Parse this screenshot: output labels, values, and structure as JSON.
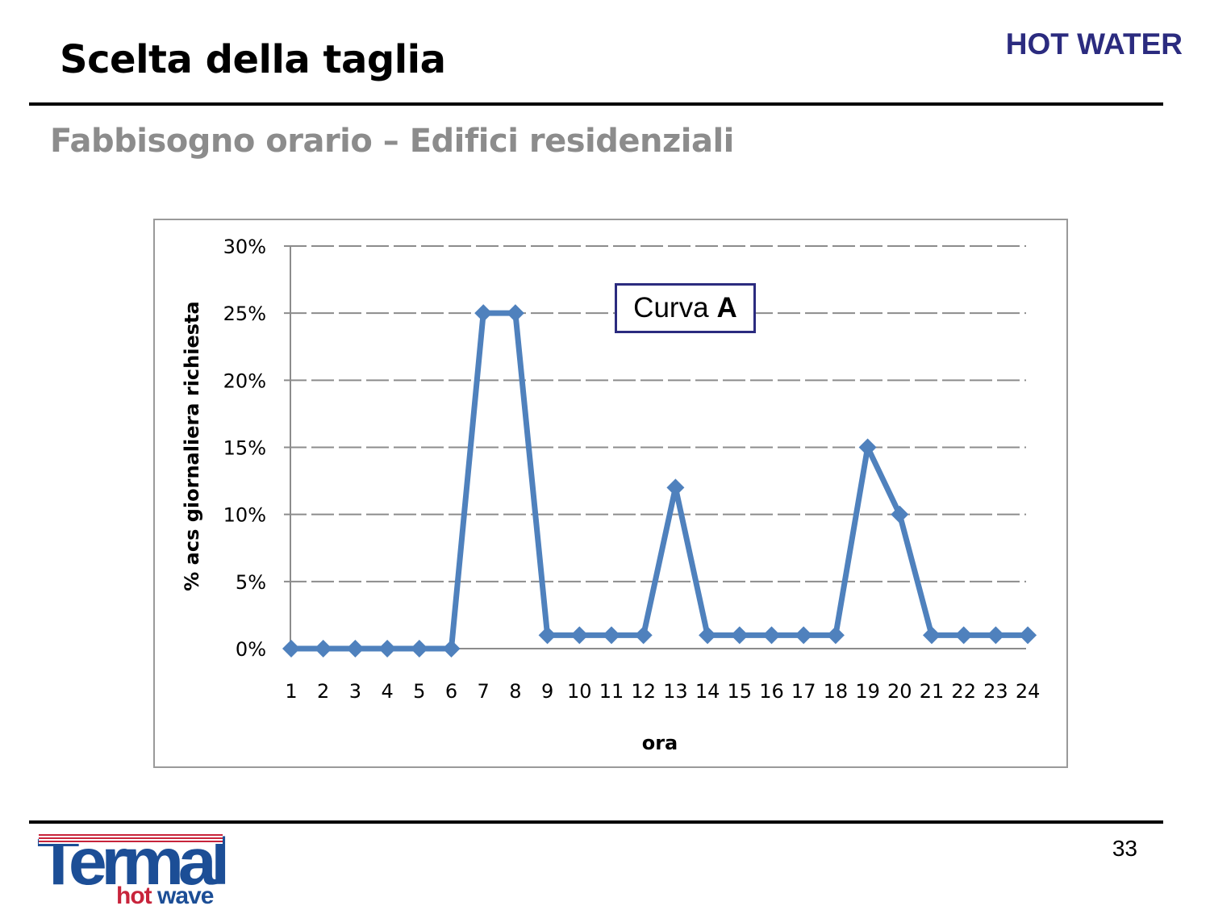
{
  "header": {
    "title": "Scelta della taglia",
    "tag": "HOT WATER",
    "subtitle": "Fabbisogno orario – Edifici residenziali"
  },
  "footer": {
    "page_number": "33",
    "logo": {
      "word": "Termal",
      "sub_hot": "hot",
      "sub_wave": "wave"
    }
  },
  "legend": {
    "prefix": "Curva",
    "label": "A"
  },
  "colors": {
    "series": "#4f81bd",
    "legend_border": "#2b2b7f",
    "tag": "#2b2b7f",
    "grid": "#8c8c8c"
  },
  "chart_data": {
    "type": "line",
    "xlabel": "ora",
    "ylabel": "% acs giornaliera richiesta",
    "x": [
      1,
      2,
      3,
      4,
      5,
      6,
      7,
      8,
      9,
      10,
      11,
      12,
      13,
      14,
      15,
      16,
      17,
      18,
      19,
      20,
      21,
      22,
      23,
      24
    ],
    "y_ticks": [
      "0%",
      "5%",
      "10%",
      "15%",
      "20%",
      "25%",
      "30%"
    ],
    "ylim": [
      0,
      30
    ],
    "grid": "horizontal dashed",
    "marker": "diamond",
    "series": [
      {
        "name": "Curva A",
        "values": [
          0,
          0,
          0,
          0,
          0,
          0,
          25,
          25,
          1,
          1,
          1,
          1,
          12,
          1,
          1,
          1,
          1,
          1,
          15,
          10,
          1,
          1,
          1,
          1
        ]
      }
    ]
  }
}
